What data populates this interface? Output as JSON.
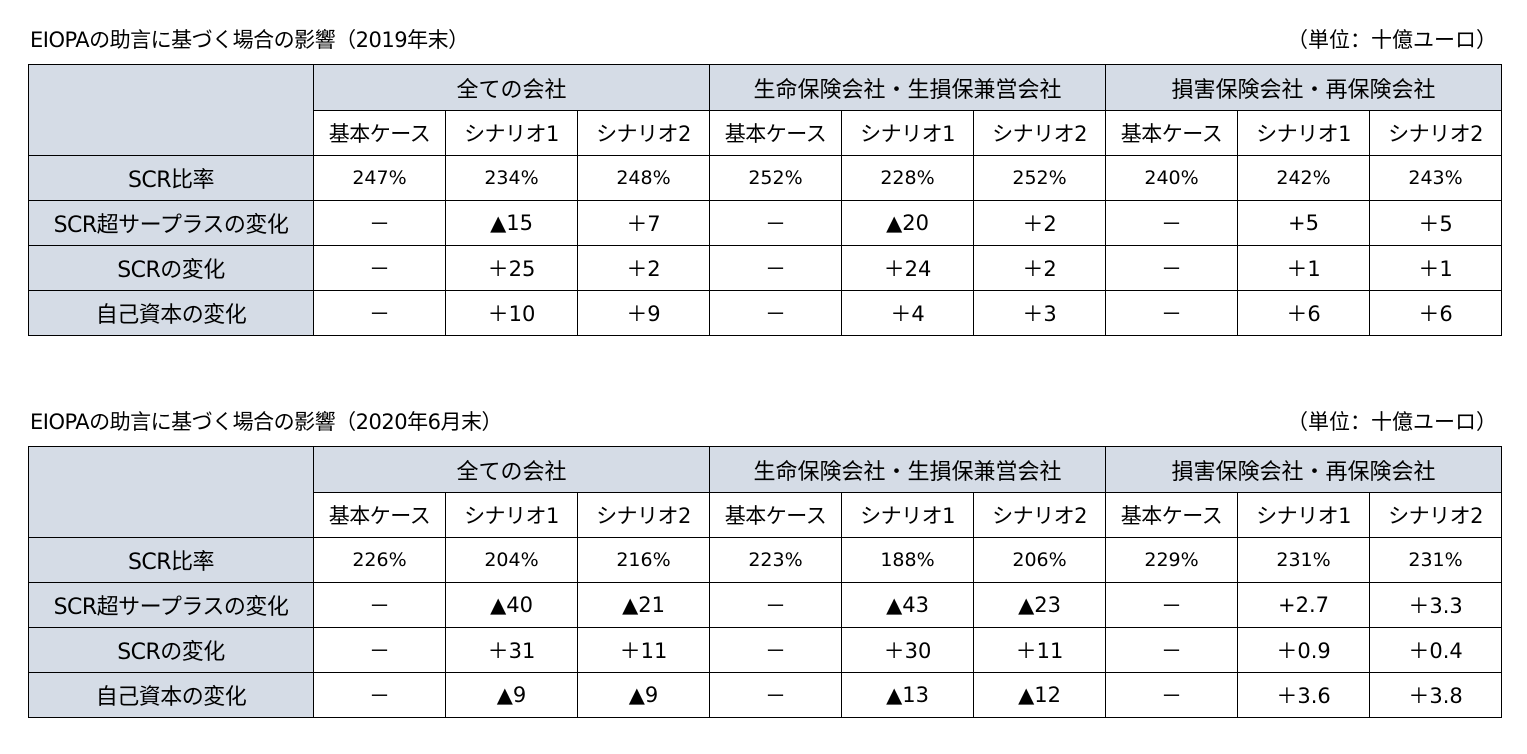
{
  "tables": [
    {
      "title": "EIOPAの助言に基づく場合の影響（2019年末）",
      "unit": "（単位：十億ユーロ）",
      "groups": [
        "全ての会社",
        "生命保険会社・生損保兼営会社",
        "損害保険会社・再保険会社"
      ],
      "subheaders": [
        "基本ケース",
        "シナリオ1",
        "シナリオ2",
        "基本ケース",
        "シナリオ1",
        "シナリオ2",
        "基本ケース",
        "シナリオ1",
        "シナリオ2"
      ],
      "rows": [
        {
          "label": "SCR比率",
          "values": [
            "247%",
            "234%",
            "248%",
            "252%",
            "228%",
            "252%",
            "240%",
            "242%",
            "243%"
          ]
        },
        {
          "label": "SCR超サープラスの変化",
          "values": [
            "－",
            "▲15",
            "＋7",
            "－",
            "▲20",
            "＋2",
            "－",
            "+5",
            "＋5"
          ]
        },
        {
          "label": "SCRの変化",
          "values": [
            "－",
            "＋25",
            "＋2",
            "－",
            "＋24",
            "＋2",
            "－",
            "＋1",
            "＋1"
          ]
        },
        {
          "label": "自己資本の変化",
          "values": [
            "－",
            "＋10",
            "＋9",
            "－",
            "＋4",
            "＋3",
            "－",
            "＋6",
            "＋6"
          ]
        }
      ]
    },
    {
      "title": "EIOPAの助言に基づく場合の影響（2020年6月末）",
      "unit": "（単位：十億ユーロ）",
      "groups": [
        "全ての会社",
        "生命保険会社・生損保兼営会社",
        "損害保険会社・再保険会社"
      ],
      "subheaders": [
        "基本ケース",
        "シナリオ1",
        "シナリオ2",
        "基本ケース",
        "シナリオ1",
        "シナリオ2",
        "基本ケース",
        "シナリオ1",
        "シナリオ2"
      ],
      "rows": [
        {
          "label": "SCR比率",
          "values": [
            "226%",
            "204%",
            "216%",
            "223%",
            "188%",
            "206%",
            "229%",
            "231%",
            "231%"
          ]
        },
        {
          "label": "SCR超サープラスの変化",
          "values": [
            "－",
            "▲40",
            "▲21",
            "－",
            "▲43",
            "▲23",
            "－",
            "+2.7",
            "＋3.3"
          ]
        },
        {
          "label": "SCRの変化",
          "values": [
            "－",
            "＋31",
            "＋11",
            "－",
            "＋30",
            "＋11",
            "－",
            "＋0.9",
            "＋0.4"
          ]
        },
        {
          "label": "自己資本の変化",
          "values": [
            "－",
            "▲9",
            "▲9",
            "－",
            "▲13",
            "▲12",
            "－",
            "＋3.6",
            "＋3.8"
          ]
        }
      ]
    }
  ],
  "colors": {
    "header_fill": "#d5dce6",
    "border": "#000000",
    "background": "#ffffff"
  }
}
